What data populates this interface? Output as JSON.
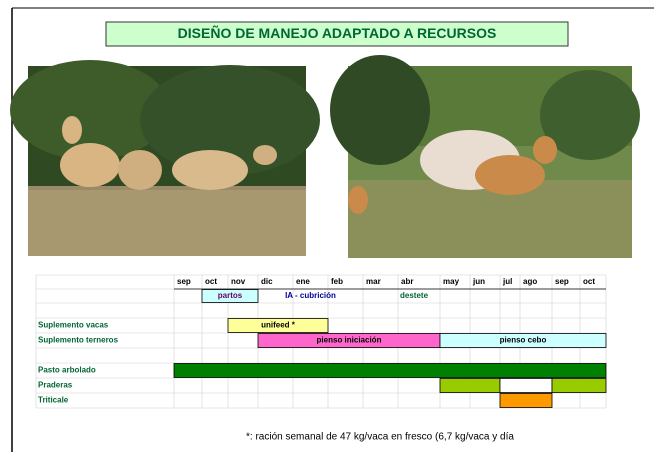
{
  "title": "DISEÑO DE MANEJO ADAPTADO A RECURSOS",
  "schedule": {
    "months": [
      "sep",
      "oct",
      "nov",
      "dic",
      "ene",
      "feb",
      "mar",
      "abr",
      "may",
      "jun",
      "jul",
      "ago",
      "sep",
      "oct"
    ],
    "events": [
      "partos",
      "IA - cubrición",
      "destete"
    ],
    "rows": [
      {
        "label": "Suplemento vacas",
        "bars": [
          "unifeed *"
        ]
      },
      {
        "label": "Suplemento terneros",
        "bars": [
          "pienso iniciación",
          "pienso cebo"
        ]
      },
      {
        "label": "Pasto arbolado"
      },
      {
        "label": "Praderas"
      },
      {
        "label": "Triticale"
      }
    ]
  },
  "footnote": "*: ración semanal de 47 kg/vaca en fresco (6,7 kg/vaca y día"
}
